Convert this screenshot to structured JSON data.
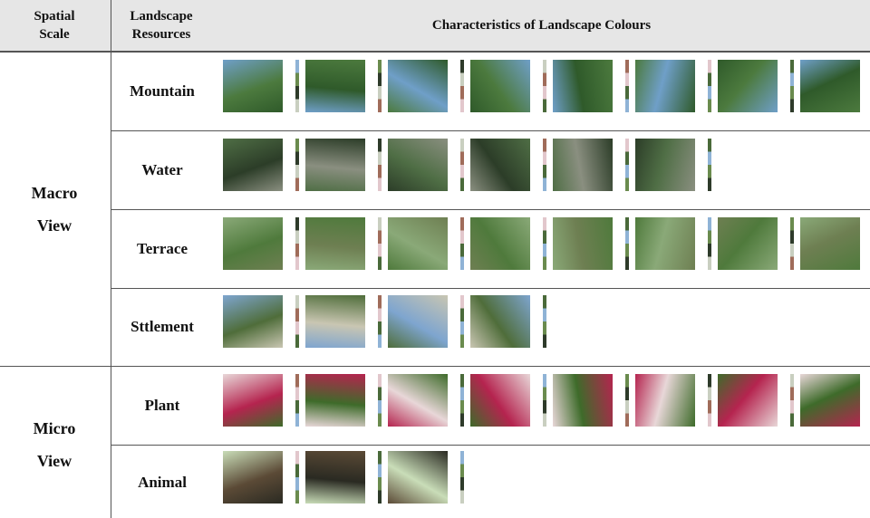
{
  "header": {
    "spatial_scale": "Spatial Scale",
    "landscape_resources": "Landscape Resources",
    "characteristics": "Characteristics of Landscape Colours"
  },
  "groups": [
    {
      "label": "Macro View",
      "rows": [
        "Mountain",
        "Water",
        "Terrace",
        "Sttlement"
      ]
    },
    {
      "label": "Micro View",
      "rows": [
        "Plant",
        "Animal"
      ]
    }
  ]
}
